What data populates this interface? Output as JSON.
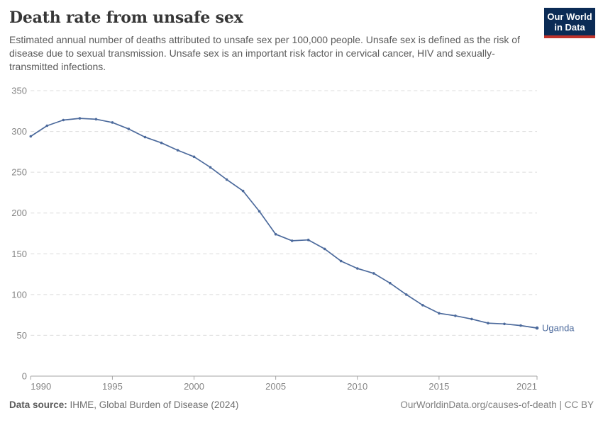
{
  "header": {
    "title": "Death rate from unsafe sex",
    "subtitle": "Estimated annual number of deaths attributed to unsafe sex per 100,000 people. Unsafe sex is defined as the risk of disease due to sexual transmission. Unsafe sex is an important risk factor in cervical cancer, HIV and sexually-transmitted infections.",
    "logo": {
      "line1": "Our World",
      "line2": "in Data",
      "bg_color": "#0B2B55",
      "bar_color": "#C0332B"
    }
  },
  "chart_data": {
    "type": "line",
    "title": "Death rate from unsafe sex",
    "entity_label": "Uganda",
    "line_color": "#4C6A9C",
    "x": [
      1990,
      1991,
      1992,
      1993,
      1994,
      1995,
      1996,
      1997,
      1998,
      1999,
      2000,
      2001,
      2002,
      2003,
      2004,
      2005,
      2006,
      2007,
      2008,
      2009,
      2010,
      2011,
      2012,
      2013,
      2014,
      2015,
      2016,
      2017,
      2018,
      2019,
      2020,
      2021
    ],
    "series": [
      {
        "name": "Uganda",
        "values": [
          294,
          307,
          314,
          316,
          315,
          311,
          303,
          293,
          286,
          277,
          269,
          256,
          241,
          227,
          202,
          174,
          166,
          167,
          156,
          141,
          132,
          126,
          114,
          100,
          87,
          77,
          74,
          70,
          65,
          64,
          62,
          59
        ]
      }
    ],
    "xlabel": "",
    "ylabel": "",
    "ylim": [
      0,
      350
    ],
    "xlim": [
      1990,
      2021
    ],
    "yticks": [
      0,
      50,
      100,
      150,
      200,
      250,
      300,
      350
    ],
    "xticks": [
      1990,
      1995,
      2000,
      2005,
      2010,
      2015,
      2021
    ],
    "grid": "horizontal-dashed",
    "legend_position": "end-of-line"
  },
  "footer": {
    "source_label": "Data source:",
    "source_value": "IHME, Global Burden of Disease (2024)",
    "right_text": "OurWorldinData.org/causes-of-death | CC BY"
  }
}
